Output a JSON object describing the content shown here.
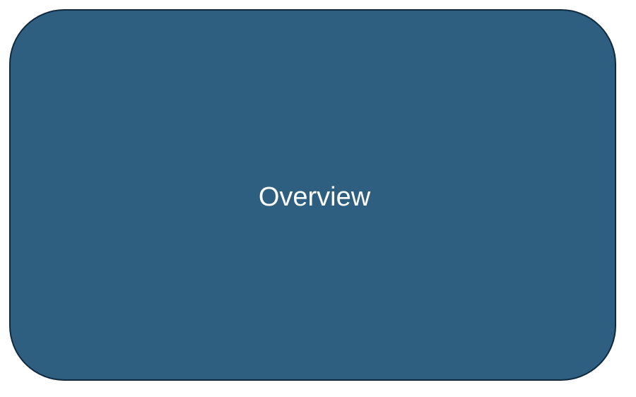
{
  "diagram": {
    "node": {
      "label": "Overview",
      "fill_color": "#2e5f80",
      "border_color": "#102a3d",
      "text_color": "#ffffff"
    }
  }
}
